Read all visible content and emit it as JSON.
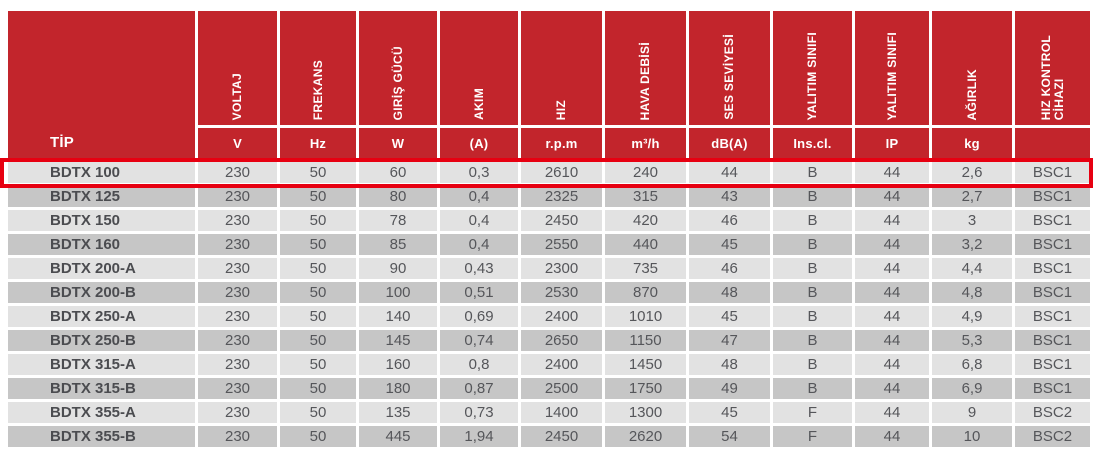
{
  "table": {
    "columns": [
      {
        "label": "TİP",
        "unit": ""
      },
      {
        "label": "VOLTAJ",
        "unit": "V"
      },
      {
        "label": "FREKANS",
        "unit": "Hz"
      },
      {
        "label": "GIRİŞ GÜCÜ",
        "unit": "W"
      },
      {
        "label": "AKIM",
        "unit": "(A)"
      },
      {
        "label": "HIZ",
        "unit": "r.p.m"
      },
      {
        "label": "HAVA DEBİSİ",
        "unit": "m³/h"
      },
      {
        "label": "SES SEVİYESİ",
        "unit": "dB(A)"
      },
      {
        "label": "YALITIM SINIFI",
        "unit": "Ins.cl."
      },
      {
        "label": "YALITIM SINIFI",
        "unit": "IP"
      },
      {
        "label": "AĞIRLIK",
        "unit": "kg"
      },
      {
        "label": "HIZ KONTROL\nCİHAZI",
        "unit": ""
      }
    ],
    "rows": [
      {
        "tip": "BDTX 100",
        "highlighted": true,
        "values": [
          "230",
          "50",
          "60",
          "0,3",
          "2610",
          "240",
          "44",
          "B",
          "44",
          "2,6",
          "BSC1"
        ]
      },
      {
        "tip": "BDTX 125",
        "highlighted": false,
        "values": [
          "230",
          "50",
          "80",
          "0,4",
          "2325",
          "315",
          "43",
          "B",
          "44",
          "2,7",
          "BSC1"
        ]
      },
      {
        "tip": "BDTX 150",
        "highlighted": false,
        "values": [
          "230",
          "50",
          "78",
          "0,4",
          "2450",
          "420",
          "46",
          "B",
          "44",
          "3",
          "BSC1"
        ]
      },
      {
        "tip": "BDTX 160",
        "highlighted": false,
        "values": [
          "230",
          "50",
          "85",
          "0,4",
          "2550",
          "440",
          "45",
          "B",
          "44",
          "3,2",
          "BSC1"
        ]
      },
      {
        "tip": "BDTX 200-A",
        "highlighted": false,
        "values": [
          "230",
          "50",
          "90",
          "0,43",
          "2300",
          "735",
          "46",
          "B",
          "44",
          "4,4",
          "BSC1"
        ]
      },
      {
        "tip": "BDTX 200-B",
        "highlighted": false,
        "values": [
          "230",
          "50",
          "100",
          "0,51",
          "2530",
          "870",
          "48",
          "B",
          "44",
          "4,8",
          "BSC1"
        ]
      },
      {
        "tip": "BDTX 250-A",
        "highlighted": false,
        "values": [
          "230",
          "50",
          "140",
          "0,69",
          "2400",
          "1010",
          "45",
          "B",
          "44",
          "4,9",
          "BSC1"
        ]
      },
      {
        "tip": "BDTX 250-B",
        "highlighted": false,
        "values": [
          "230",
          "50",
          "145",
          "0,74",
          "2650",
          "1150",
          "47",
          "B",
          "44",
          "5,3",
          "BSC1"
        ]
      },
      {
        "tip": "BDTX 315-A",
        "highlighted": false,
        "values": [
          "230",
          "50",
          "160",
          "0,8",
          "2400",
          "1450",
          "48",
          "B",
          "44",
          "6,8",
          "BSC1"
        ]
      },
      {
        "tip": "BDTX 315-B",
        "highlighted": false,
        "values": [
          "230",
          "50",
          "180",
          "0,87",
          "2500",
          "1750",
          "49",
          "B",
          "44",
          "6,9",
          "BSC1"
        ]
      },
      {
        "tip": "BDTX 355-A",
        "highlighted": false,
        "values": [
          "230",
          "50",
          "135",
          "0,73",
          "1400",
          "1300",
          "45",
          "F",
          "44",
          "9",
          "BSC2"
        ]
      },
      {
        "tip": "BDTX 355-B",
        "highlighted": false,
        "values": [
          "230",
          "50",
          "445",
          "1,94",
          "2450",
          "2620",
          "54",
          "F",
          "44",
          "10",
          "BSC2"
        ]
      }
    ],
    "colors": {
      "header_red": "#c2252c",
      "highlight_red": "#e70011",
      "row_light": "#e2e2e2",
      "row_dark": "#c6c6c6",
      "cell_text": "#55565a"
    }
  }
}
